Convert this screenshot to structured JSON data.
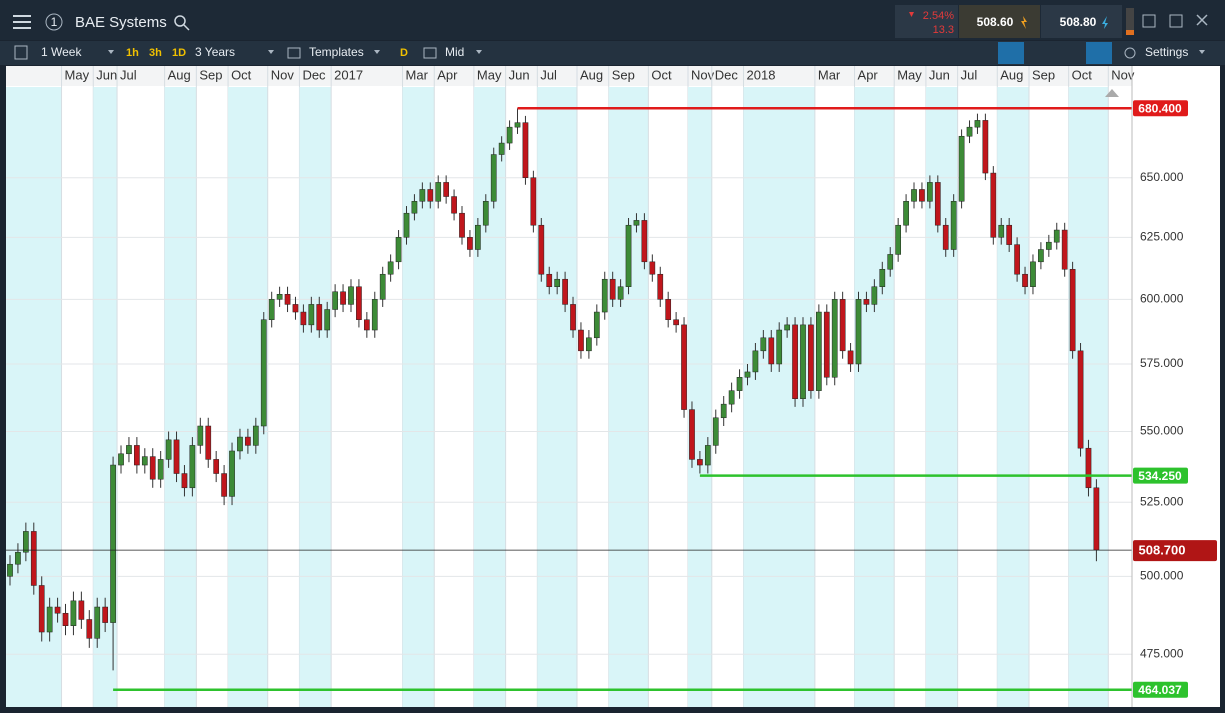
{
  "header": {
    "instrument": "BAE Systems",
    "alert_count": "1",
    "change_pct": "2.54%",
    "change_abs": "13.3",
    "sell": "508.60",
    "buy": "508.80"
  },
  "toolbar": {
    "interval": "1 Week",
    "quick_1": "1h",
    "quick_2": "3h",
    "quick_3": "1D",
    "range": "3 Years",
    "templates": "Templates",
    "d_button": "D",
    "price_type": "Mid",
    "settings": "Settings"
  },
  "chart_data": {
    "type": "candlestick",
    "log_scale": true,
    "up_color": "#3d8b37",
    "down_color": "#c0161c",
    "categories": [
      null,
      null,
      null,
      null,
      null,
      null,
      null,
      "May",
      null,
      null,
      null,
      "Jun",
      null,
      null,
      "Jul",
      null,
      null,
      null,
      null,
      null,
      "Aug",
      null,
      null,
      null,
      "Sep",
      null,
      null,
      null,
      "Oct",
      null,
      null,
      null,
      null,
      "Nov",
      null,
      null,
      null,
      "Dec",
      null,
      null,
      null,
      "2017",
      null,
      null,
      null,
      null,
      null,
      null,
      null,
      null,
      "Mar",
      null,
      null,
      null,
      "Apr",
      null,
      null,
      null,
      null,
      "May",
      null,
      null,
      null,
      "Jun",
      null,
      null,
      null,
      "Jul",
      null,
      null,
      null,
      null,
      "Aug",
      null,
      null,
      null,
      "Sep",
      null,
      null,
      null,
      null,
      "Oct",
      null,
      null,
      null,
      null,
      "Nov",
      null,
      null,
      "Dec",
      null,
      null,
      null,
      "2018",
      null,
      null,
      null,
      null,
      null,
      null,
      null,
      null,
      "Mar",
      null,
      null,
      null,
      null,
      "Apr",
      null,
      null,
      null,
      null,
      "May",
      null,
      null,
      null,
      "Jun",
      null,
      null,
      null,
      "Jul",
      null,
      null,
      null,
      null,
      "Aug",
      null,
      null,
      null,
      "Sep",
      null,
      null,
      null,
      null,
      "Oct",
      null,
      null,
      null,
      null,
      "Nov"
    ],
    "open": [
      500,
      504,
      508,
      515,
      497,
      482,
      490,
      488,
      484,
      492,
      486,
      480,
      490,
      485,
      538,
      542,
      545,
      538,
      541,
      533,
      540,
      547,
      535,
      530,
      545,
      552,
      540,
      535,
      527,
      543,
      548,
      545,
      552,
      592,
      600,
      602,
      598,
      595,
      590,
      598,
      588,
      596,
      603,
      598,
      605,
      592,
      588,
      600,
      610,
      615,
      625,
      635,
      640,
      645,
      640,
      648,
      642,
      635,
      625,
      620,
      630,
      640,
      660,
      665,
      672,
      674,
      650,
      630,
      610,
      605,
      608,
      598,
      588,
      580,
      585,
      595,
      608,
      600,
      605,
      630,
      632,
      615,
      610,
      600,
      592,
      590,
      558,
      540,
      538,
      545,
      555,
      560,
      565,
      570,
      572,
      580,
      585,
      575,
      588,
      590,
      562,
      590,
      565,
      595,
      570,
      600,
      580,
      575,
      600,
      598,
      605,
      612,
      618,
      630,
      640,
      645,
      640,
      648,
      630,
      620,
      640,
      668,
      672,
      675,
      652,
      625,
      630,
      622,
      610,
      605,
      615,
      620,
      623,
      628,
      612,
      580,
      544,
      530,
      null,
      null
    ],
    "high": [
      507,
      511,
      518,
      518,
      500,
      493,
      493,
      491,
      495,
      495,
      489,
      493,
      493,
      541,
      545,
      548,
      548,
      544,
      544,
      543,
      550,
      550,
      538,
      548,
      555,
      555,
      543,
      538,
      546,
      551,
      551,
      555,
      595,
      603,
      605,
      605,
      601,
      598,
      601,
      601,
      599,
      606,
      606,
      608,
      608,
      595,
      603,
      613,
      618,
      628,
      638,
      643,
      648,
      648,
      651,
      651,
      645,
      638,
      628,
      633,
      643,
      663,
      668,
      675,
      680.4,
      677,
      653,
      633,
      613,
      611,
      611,
      601,
      591,
      588,
      598,
      611,
      611,
      608,
      633,
      635,
      635,
      618,
      613,
      603,
      595,
      593,
      561,
      543,
      548,
      558,
      563,
      568,
      573,
      575,
      583,
      588,
      588,
      591,
      593,
      593,
      593,
      593,
      598,
      598,
      603,
      603,
      583,
      603,
      603,
      608,
      615,
      621,
      633,
      643,
      648,
      648,
      651,
      651,
      633,
      643,
      671,
      675,
      678,
      678,
      655,
      633,
      633,
      625,
      613,
      618,
      623,
      626,
      631,
      631,
      615,
      583,
      547,
      533,
      null,
      null
    ],
    "low": [
      497,
      501,
      505,
      494,
      479,
      479,
      485,
      481,
      481,
      483,
      477,
      477,
      482,
      470,
      535,
      539,
      535,
      535,
      530,
      530,
      537,
      532,
      527,
      527,
      542,
      537,
      532,
      524,
      524,
      540,
      542,
      542,
      549,
      589,
      597,
      595,
      592,
      587,
      587,
      585,
      585,
      593,
      595,
      595,
      589,
      585,
      585,
      597,
      607,
      612,
      622,
      632,
      637,
      637,
      637,
      639,
      632,
      622,
      617,
      617,
      627,
      637,
      657,
      662,
      669,
      647,
      627,
      607,
      602,
      602,
      595,
      585,
      577,
      577,
      582,
      592,
      597,
      597,
      602,
      627,
      612,
      607,
      597,
      589,
      587,
      555,
      537,
      535,
      535,
      542,
      552,
      557,
      562,
      567,
      569,
      577,
      572,
      572,
      585,
      559,
      559,
      562,
      562,
      567,
      567,
      577,
      572,
      572,
      595,
      595,
      602,
      609,
      615,
      627,
      637,
      637,
      637,
      627,
      617,
      617,
      637,
      665,
      669,
      649,
      622,
      622,
      619,
      607,
      602,
      602,
      612,
      617,
      620,
      609,
      577,
      541,
      527,
      505,
      null,
      null
    ],
    "close": [
      504,
      508,
      515,
      497,
      482,
      490,
      488,
      484,
      492,
      486,
      480,
      490,
      485,
      538,
      542,
      545,
      538,
      541,
      533,
      540,
      547,
      535,
      530,
      545,
      552,
      540,
      535,
      527,
      543,
      548,
      545,
      552,
      592,
      600,
      602,
      598,
      595,
      590,
      598,
      588,
      596,
      603,
      598,
      605,
      592,
      588,
      600,
      610,
      615,
      625,
      635,
      640,
      645,
      640,
      648,
      642,
      635,
      625,
      620,
      630,
      640,
      660,
      665,
      672,
      674,
      650,
      630,
      610,
      605,
      608,
      598,
      588,
      580,
      585,
      595,
      608,
      600,
      605,
      630,
      632,
      615,
      610,
      600,
      592,
      590,
      558,
      540,
      538,
      545,
      555,
      560,
      565,
      570,
      572,
      580,
      585,
      575,
      588,
      590,
      562,
      590,
      565,
      595,
      570,
      600,
      580,
      575,
      600,
      598,
      605,
      612,
      618,
      630,
      640,
      645,
      640,
      648,
      630,
      620,
      640,
      668,
      672,
      675,
      652,
      625,
      630,
      622,
      610,
      605,
      615,
      620,
      623,
      628,
      612,
      580,
      544,
      530,
      508.7,
      null,
      null
    ],
    "ylim": [
      460,
      690
    ],
    "yticks": [
      {
        "value": 475,
        "label": "475.000"
      },
      {
        "value": 500,
        "label": "500.000"
      },
      {
        "value": 525,
        "label": "525.000"
      },
      {
        "value": 550,
        "label": "550.000"
      },
      {
        "value": 575,
        "label": "575.000"
      },
      {
        "value": 600,
        "label": "600.000"
      },
      {
        "value": 625,
        "label": "625.000"
      },
      {
        "value": 650,
        "label": "650.000"
      }
    ],
    "grid": true,
    "levels": [
      {
        "value": 680.4,
        "label": "680.400",
        "color": "#e01b1b"
      },
      {
        "value": 534.25,
        "label": "534.250",
        "color": "#2dc22d"
      },
      {
        "value": 464.037,
        "label": "464.037",
        "color": "#2dc22d"
      }
    ],
    "last_price": {
      "value": 508.7,
      "label": "508.700",
      "color": "#b01515"
    }
  }
}
